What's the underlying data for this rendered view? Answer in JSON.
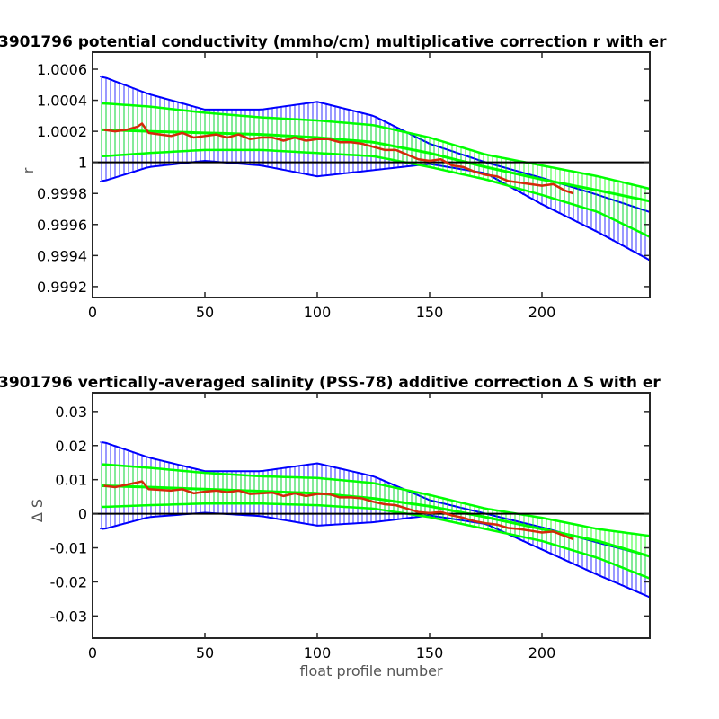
{
  "chart_data": [
    {
      "type": "line",
      "title": "3901796 potential conductivity (mmho/cm) multiplicative correction r with er",
      "xlabel": "",
      "ylabel": "r",
      "xlim": [
        0,
        248
      ],
      "ylim": [
        0.99913,
        1.00071
      ],
      "x_ticks": [
        0,
        50,
        100,
        150,
        200
      ],
      "x_tick_labels": [
        "0",
        "50",
        "100",
        "150",
        "200"
      ],
      "y_ticks": [
        0.9992,
        0.9994,
        0.9996,
        0.9998,
        1.0,
        1.0002,
        1.0004,
        1.0006
      ],
      "y_tick_labels": [
        "0.9992",
        "0.9994",
        "0.9996",
        "0.9998",
        "1",
        "1.0002",
        "1.0004",
        "1.0006"
      ],
      "reference_line": 1.0,
      "grid": false,
      "legend": "none",
      "colors": {
        "correction": "#d42a0a",
        "fit": "#00ff00",
        "error_band": "#0000ff",
        "reference": "#000000"
      },
      "series": [
        {
          "role": "fitted-correction-with-error",
          "x": [
            5,
            25,
            50,
            75,
            100,
            125,
            150,
            175,
            200,
            225,
            248
          ],
          "y": [
            1.00021,
            1.0002,
            1.00019,
            1.00018,
            1.00016,
            1.00013,
            1.00006,
            0.99997,
            0.99989,
            0.99982,
            0.99975
          ],
          "error_upper": [
            1.00038,
            1.00036,
            1.00032,
            1.00029,
            1.00027,
            1.00024,
            1.00016,
            1.00005,
            0.99998,
            0.99991,
            0.99983
          ],
          "error_lower": [
            1.00004,
            1.00006,
            1.00008,
            1.00008,
            1.00006,
            1.00004,
            0.99997,
            0.99989,
            0.99979,
            0.99968,
            0.99952
          ]
        },
        {
          "role": "total-error-envelope",
          "x": [
            5,
            25,
            50,
            75,
            100,
            125,
            150,
            175,
            200,
            225,
            248
          ],
          "upper": [
            1.00055,
            1.00044,
            1.00034,
            1.00034,
            1.00039,
            1.0003,
            1.00012,
            1.0,
            0.9999,
            0.99979,
            0.99968
          ],
          "lower": [
            0.99988,
            0.99997,
            1.00001,
            0.99998,
            0.99991,
            0.99995,
            0.99999,
            0.99993,
            0.99973,
            0.99955,
            0.99937
          ]
        },
        {
          "role": "profile-correction",
          "x": [
            5,
            10,
            15,
            20,
            22,
            25,
            30,
            35,
            40,
            45,
            50,
            55,
            60,
            65,
            70,
            75,
            80,
            85,
            90,
            95,
            100,
            105,
            110,
            115,
            120,
            125,
            130,
            135,
            140,
            145,
            150,
            155,
            160,
            165,
            170,
            175,
            180,
            185,
            190,
            195,
            200,
            205,
            210,
            214
          ],
          "y": [
            1.00021,
            1.0002,
            1.00021,
            1.00023,
            1.00025,
            1.00019,
            1.00018,
            1.00017,
            1.00019,
            1.00016,
            1.00017,
            1.00018,
            1.00016,
            1.00018,
            1.00015,
            1.00016,
            1.00016,
            1.00014,
            1.00016,
            1.00014,
            1.00015,
            1.00015,
            1.00013,
            1.00013,
            1.00012,
            1.0001,
            1.00008,
            1.00008,
            1.00005,
            1.00002,
            1.00001,
            1.00002,
            0.99998,
            0.99997,
            0.99994,
            0.99992,
            0.99991,
            0.99988,
            0.99987,
            0.99986,
            0.99985,
            0.99986,
            0.99982,
            0.9998
          ]
        }
      ]
    },
    {
      "type": "line",
      "title": "3901796 vertically-averaged salinity (PSS-78) additive correction ∆ S with er",
      "xlabel": "float profile number",
      "ylabel": "∆ S",
      "xlim": [
        0,
        248
      ],
      "ylim": [
        -0.0365,
        0.0355
      ],
      "x_ticks": [
        0,
        50,
        100,
        150,
        200
      ],
      "x_tick_labels": [
        "0",
        "50",
        "100",
        "150",
        "200"
      ],
      "y_ticks": [
        -0.03,
        -0.02,
        -0.01,
        0,
        0.01,
        0.02,
        0.03
      ],
      "y_tick_labels": [
        "-0.03",
        "-0.02",
        "-0.01",
        "0",
        "0.01",
        "0.02",
        "0.03"
      ],
      "reference_line": 0,
      "grid": false,
      "legend": "none",
      "colors": {
        "correction": "#d42a0a",
        "fit": "#00ff00",
        "error_band": "#0000ff",
        "reference": "#000000"
      },
      "series": [
        {
          "role": "fitted-correction-with-error",
          "x": [
            5,
            25,
            50,
            75,
            100,
            125,
            150,
            175,
            200,
            225,
            248
          ],
          "y": [
            0.0082,
            0.0078,
            0.0072,
            0.0066,
            0.006,
            0.0045,
            0.0022,
            -0.001,
            -0.0045,
            -0.008,
            -0.0125
          ],
          "error_upper": [
            0.0145,
            0.0135,
            0.012,
            0.011,
            0.0105,
            0.009,
            0.0055,
            0.0015,
            -0.0012,
            -0.0045,
            -0.0065
          ],
          "error_lower": [
            0.002,
            0.0025,
            0.003,
            0.003,
            0.0025,
            0.0015,
            -0.001,
            -0.0045,
            -0.008,
            -0.013,
            -0.019
          ]
        },
        {
          "role": "total-error-envelope",
          "x": [
            5,
            25,
            50,
            75,
            100,
            125,
            150,
            175,
            200,
            225,
            248
          ],
          "upper": [
            0.021,
            0.0165,
            0.0125,
            0.0125,
            0.0148,
            0.011,
            0.004,
            0.0,
            -0.004,
            -0.0085,
            -0.0125
          ],
          "lower": [
            -0.0045,
            -0.001,
            0.0003,
            -0.0007,
            -0.0035,
            -0.0025,
            -0.0005,
            -0.003,
            -0.0105,
            -0.018,
            -0.0245
          ]
        },
        {
          "role": "profile-correction",
          "x": [
            5,
            10,
            15,
            20,
            22,
            25,
            30,
            35,
            40,
            45,
            50,
            55,
            60,
            65,
            70,
            75,
            80,
            85,
            90,
            95,
            100,
            105,
            110,
            115,
            120,
            125,
            130,
            135,
            140,
            145,
            150,
            155,
            160,
            165,
            170,
            175,
            180,
            185,
            190,
            195,
            200,
            205,
            210,
            214
          ],
          "y": [
            0.0082,
            0.0078,
            0.0085,
            0.0092,
            0.0095,
            0.0072,
            0.007,
            0.0068,
            0.0072,
            0.006,
            0.0065,
            0.0068,
            0.0063,
            0.0068,
            0.0058,
            0.006,
            0.0062,
            0.0052,
            0.006,
            0.0052,
            0.0058,
            0.0058,
            0.0048,
            0.0048,
            0.0045,
            0.0035,
            0.0028,
            0.0025,
            0.0015,
            0.0005,
            0.0002,
            0.0005,
            -0.0005,
            -0.0012,
            -0.0022,
            -0.0028,
            -0.0032,
            -0.0042,
            -0.0045,
            -0.005,
            -0.0055,
            -0.0052,
            -0.0065,
            -0.0075
          ]
        }
      ]
    }
  ]
}
